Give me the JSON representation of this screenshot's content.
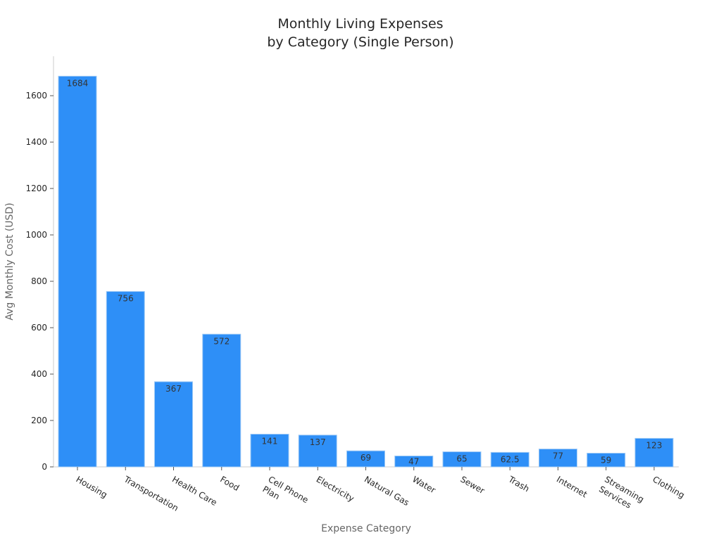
{
  "chart_data": {
    "type": "bar",
    "title": [
      "Monthly Living Expenses",
      "by Category (Single Person)"
    ],
    "xlabel": "Expense Category",
    "ylabel": "Avg Monthly Cost (USD)",
    "categories": [
      [
        "Housing"
      ],
      [
        "Transportation"
      ],
      [
        "Health Care"
      ],
      [
        "Food"
      ],
      [
        "Cell Phone",
        "Plan"
      ],
      [
        "Electricity"
      ],
      [
        "Natural Gas"
      ],
      [
        "Water"
      ],
      [
        "Sewer"
      ],
      [
        "Trash"
      ],
      [
        "Internet"
      ],
      [
        "Streaming",
        "Services"
      ],
      [
        "Clothing"
      ]
    ],
    "values": [
      1684,
      756,
      367,
      572,
      141,
      137,
      69,
      47,
      65,
      62.5,
      77,
      59,
      123
    ],
    "data_labels": [
      "1684",
      "756",
      "367",
      "572",
      "141",
      "137",
      "69",
      "47",
      "65",
      "62.5",
      "77",
      "59",
      "123"
    ],
    "yticks": [
      0,
      200,
      400,
      600,
      800,
      1000,
      1200,
      1400,
      1600
    ],
    "ylim": [
      0,
      1770
    ],
    "grid": false,
    "bar_color": "#2e8ff7",
    "bar_edge_color": "#9cc8f5"
  }
}
